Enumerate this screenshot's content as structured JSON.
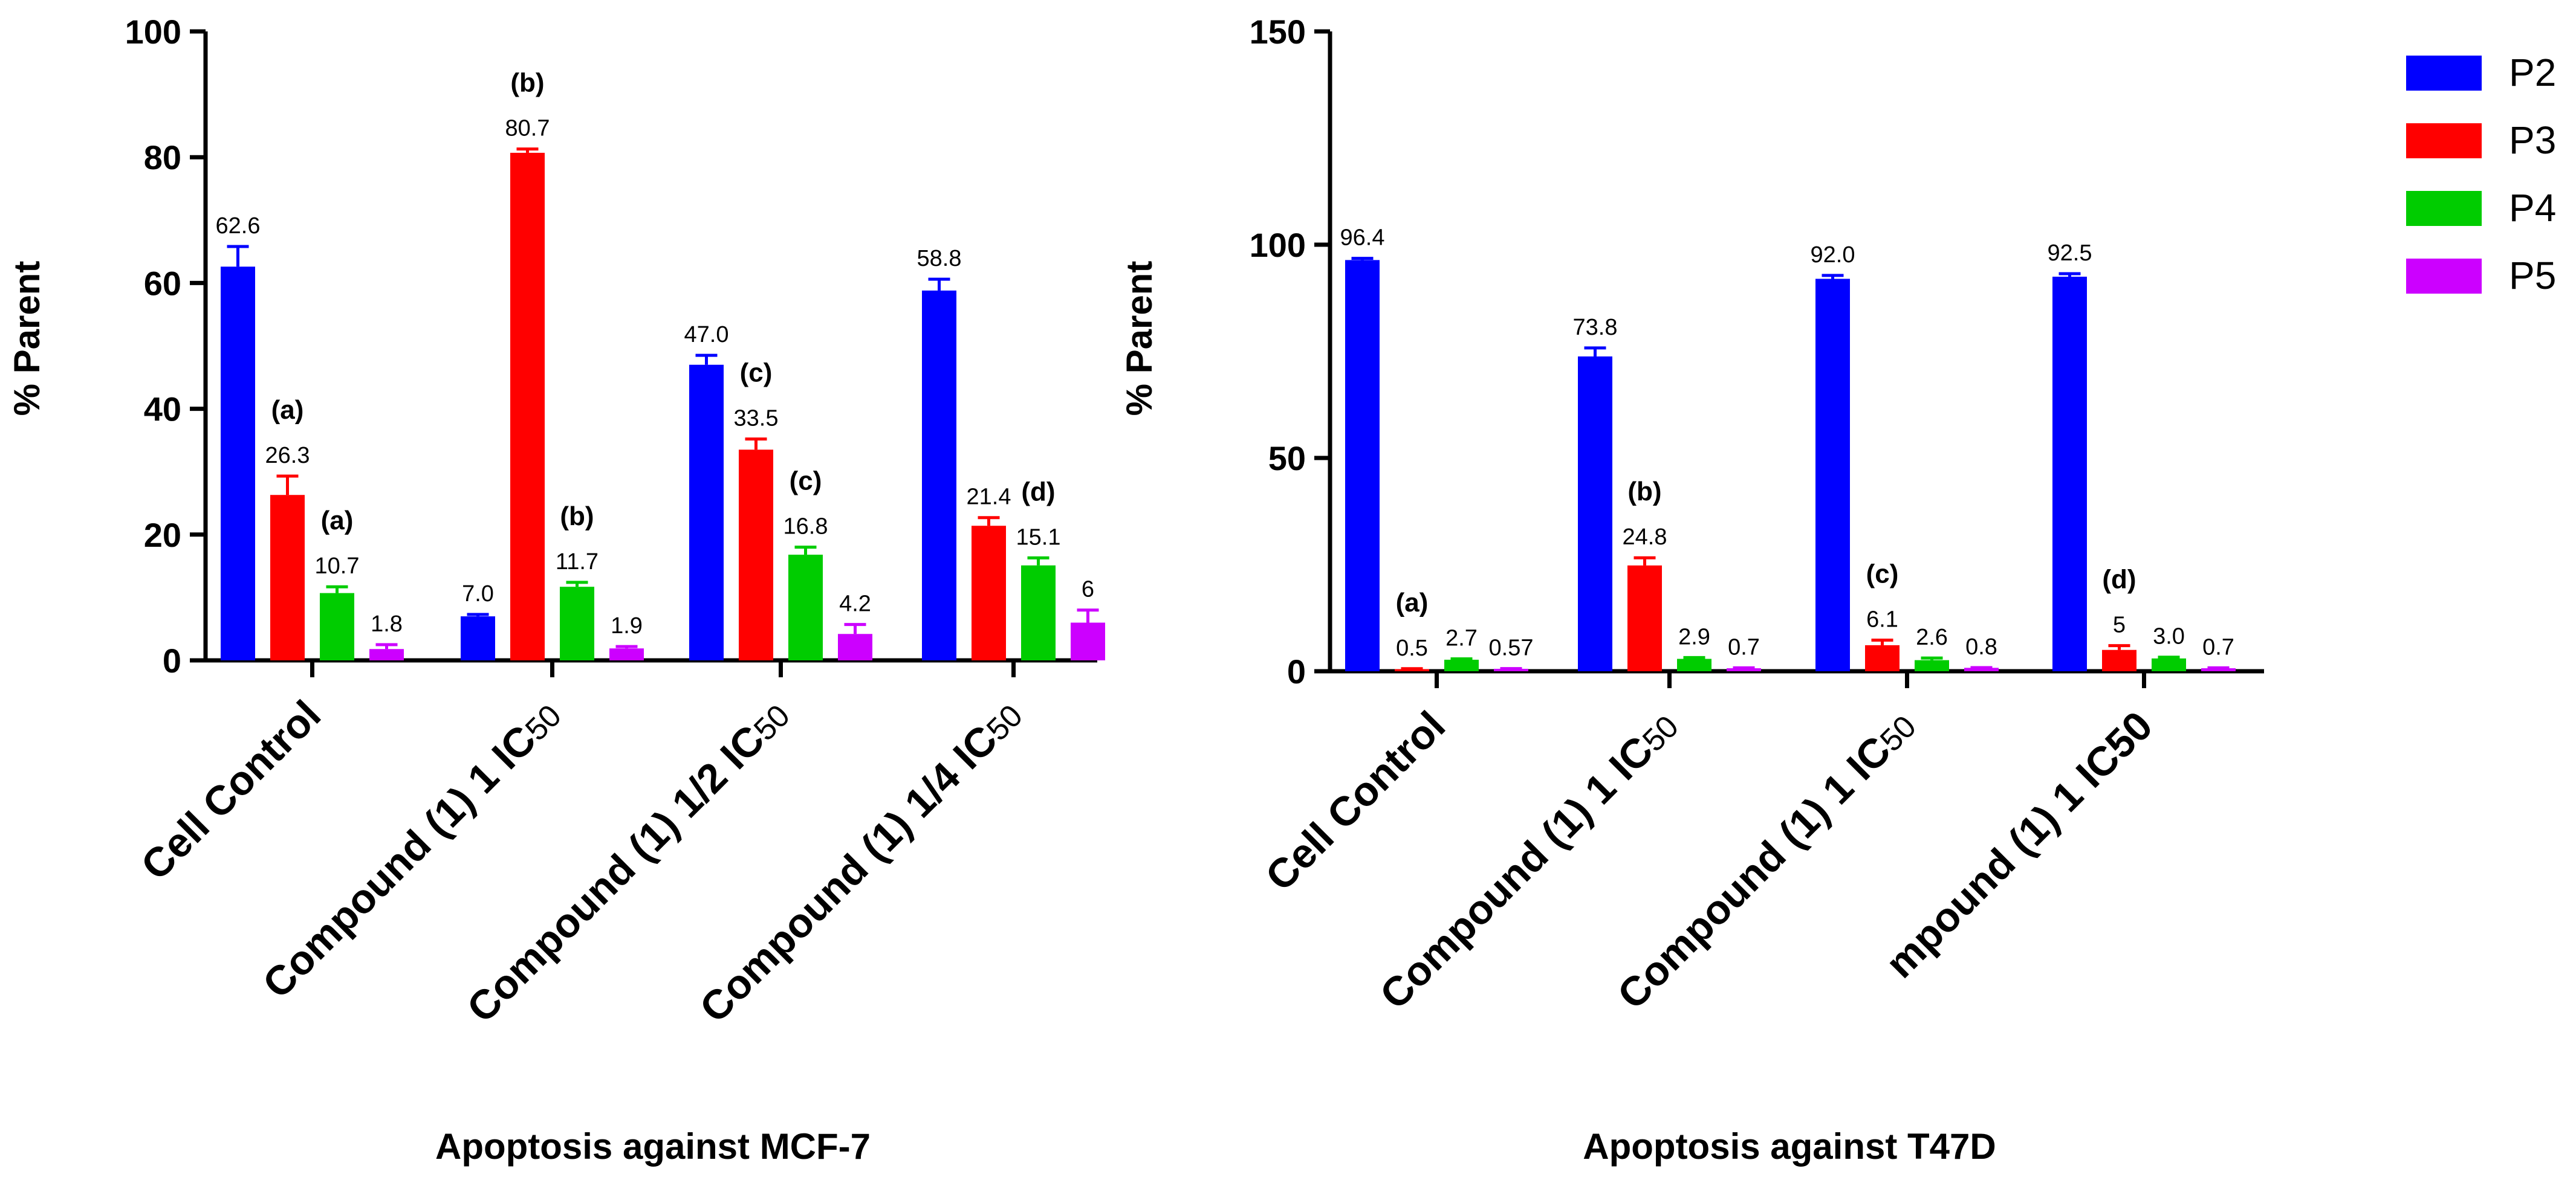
{
  "colors": {
    "P2": "#0000ff",
    "P3": "#ff0000",
    "P4": "#00cc00",
    "P5": "#cc00ff",
    "axis": "#000000"
  },
  "legend": {
    "placement": "top-right",
    "items": [
      "P2",
      "P3",
      "P4",
      "P5"
    ]
  },
  "chart_data": [
    {
      "type": "bar",
      "title": "Apoptosis against MCF-7",
      "xlabel": "Apoptosis against MCF-7",
      "ylabel": "% Parent",
      "ylim": [
        0,
        100
      ],
      "yticks": [
        "0",
        "20",
        "40",
        "60",
        "80",
        "100"
      ],
      "categories": [
        {
          "main": "Cell Control",
          "sub": ""
        },
        {
          "main": "Compound (1) 1 IC",
          "sub": "50"
        },
        {
          "main": "Compound (1) 1/2 IC",
          "sub": "50"
        },
        {
          "main": "Compound (1) 1/4 IC",
          "sub": "50"
        }
      ],
      "series": [
        {
          "name": "P2",
          "values": [
            62.6,
            7.0,
            47.0,
            58.8
          ],
          "labels": [
            "62.6",
            "7.0",
            "47.0",
            "58.8"
          ],
          "errors": [
            3.2,
            0.3,
            1.5,
            1.8
          ]
        },
        {
          "name": "P3",
          "values": [
            26.3,
            80.7,
            33.5,
            21.4
          ],
          "labels": [
            "26.3",
            "80.7",
            "33.5",
            "21.4"
          ],
          "errors": [
            3.0,
            0.6,
            1.7,
            1.3
          ]
        },
        {
          "name": "P4",
          "values": [
            10.7,
            11.7,
            16.8,
            15.1
          ],
          "labels": [
            "10.7",
            "11.7",
            "16.8",
            "15.1"
          ],
          "errors": [
            1.0,
            0.7,
            1.2,
            1.2
          ]
        },
        {
          "name": "P5",
          "values": [
            1.8,
            1.9,
            4.2,
            6
          ],
          "labels": [
            "1.8",
            "1.9",
            "4.2",
            "6"
          ],
          "errors": [
            0.7,
            0.3,
            1.5,
            2.0
          ]
        }
      ],
      "annotations": [
        {
          "text": "(a)",
          "category": 0,
          "series": 1
        },
        {
          "text": "(a)",
          "category": 0,
          "series": 2
        },
        {
          "text": "(b)",
          "category": 1,
          "series": 1
        },
        {
          "text": "(b)",
          "category": 1,
          "series": 2
        },
        {
          "text": "(c)",
          "category": 2,
          "series": 1
        },
        {
          "text": "(c)",
          "category": 2,
          "series": 2
        },
        {
          "text": "(d)",
          "category": 3,
          "series": 2
        }
      ]
    },
    {
      "type": "bar",
      "title": "Apoptosis against T47D",
      "xlabel": "Apoptosis against T47D",
      "ylabel": "% Parent",
      "ylim": [
        0,
        150
      ],
      "yticks": [
        "0",
        "50",
        "100",
        "150"
      ],
      "categories": [
        {
          "main": "Cell Control",
          "sub": ""
        },
        {
          "main": "Compound (1) 1 IC",
          "sub": "50"
        },
        {
          "main": "Compound (1) 1 IC",
          "sub": "50"
        },
        {
          "main": "mpound (1) 1 IC50",
          "sub": ""
        }
      ],
      "series": [
        {
          "name": "P2",
          "values": [
            96.4,
            73.8,
            92.0,
            92.5
          ],
          "labels": [
            "96.4",
            "73.8",
            "92.0",
            "92.5"
          ],
          "errors": [
            0.4,
            2.0,
            0.8,
            0.7
          ]
        },
        {
          "name": "P3",
          "values": [
            0.5,
            24.8,
            6.1,
            5
          ],
          "labels": [
            "0.5",
            "24.8",
            "6.1",
            "5"
          ],
          "errors": [
            0.1,
            1.8,
            1.2,
            1.0
          ]
        },
        {
          "name": "P4",
          "values": [
            2.7,
            2.9,
            2.6,
            3.0
          ],
          "labels": [
            "2.7",
            "2.9",
            "2.6",
            "3.0"
          ],
          "errors": [
            0.2,
            0.3,
            0.5,
            0.3
          ]
        },
        {
          "name": "P5",
          "values": [
            0.57,
            0.7,
            0.8,
            0.7
          ],
          "labels": [
            "0.57",
            "0.7",
            "0.8",
            "0.7"
          ],
          "errors": [
            0.05,
            0.1,
            0.05,
            0.1
          ]
        }
      ],
      "annotations": [
        {
          "text": "(a)",
          "category": 0,
          "series": 1
        },
        {
          "text": "(b)",
          "category": 1,
          "series": 1
        },
        {
          "text": "(c)",
          "category": 2,
          "series": 1
        },
        {
          "text": "(d)",
          "category": 3,
          "series": 1
        }
      ]
    }
  ]
}
